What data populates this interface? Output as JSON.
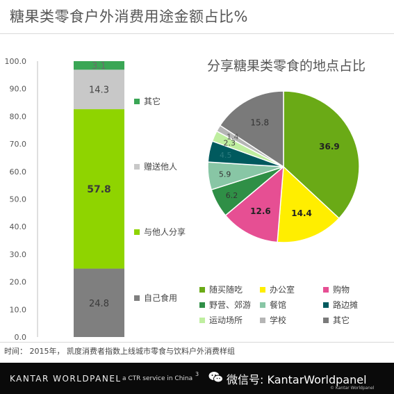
{
  "page_title": "糖果类零食户外消费用途金额占比%",
  "pie_title": "分享糖果类零食的地点占比",
  "footnote": "时间： 2015年， 凯度消费者指数上线城市零食与饮料户外消费样组",
  "footer": {
    "brand": "KANTAR WORLDPANEL",
    "brand_sub": "a CTR service in China",
    "page_number": "3",
    "wechat": "微信号: KantarWorldpanel",
    "copyright": "© Kantar Worldpanel"
  },
  "chart_data": [
    {
      "type": "bar",
      "stacked": true,
      "ylim": [
        0,
        100
      ],
      "yticks": [
        "0.0",
        "10.0",
        "20.0",
        "30.0",
        "40.0",
        "50.0",
        "60.0",
        "70.0",
        "80.0",
        "90.0",
        "100.0"
      ],
      "series": [
        {
          "name": "自己食用",
          "value": 24.8,
          "label": "24.8",
          "color": "#7f7f7f",
          "label_color": "#3a3a3a"
        },
        {
          "name": "与他人分享",
          "value": 57.8,
          "label": "57.8",
          "color": "#8fd400",
          "label_color": "#3a3a3a"
        },
        {
          "name": "赠送他人",
          "value": 14.3,
          "label": "14.3",
          "color": "#c8c8c8",
          "label_color": "#444444"
        },
        {
          "name": "其它",
          "value": 3.1,
          "label": "3.1",
          "color": "#3aa655",
          "label_color": "#6c6c6c"
        }
      ],
      "legend": [
        {
          "label": "其它",
          "color": "#3aa655"
        },
        {
          "label": "赠送他人",
          "color": "#c8c8c8"
        },
        {
          "label": "与他人分享",
          "color": "#8fd400"
        },
        {
          "label": "自己食用",
          "color": "#7f7f7f"
        }
      ]
    },
    {
      "type": "pie",
      "slices": [
        {
          "name": "随买随吃",
          "value": 36.9,
          "label": "36.9",
          "color": "#6aaa16",
          "label_color": "#222222"
        },
        {
          "name": "办公室",
          "value": 14.4,
          "label": "14.4",
          "color": "#ffee00",
          "label_color": "#222222"
        },
        {
          "name": "购物",
          "value": 12.6,
          "label": "12.6",
          "color": "#e64f93",
          "label_color": "#222222"
        },
        {
          "name": "野营、郊游",
          "value": 6.2,
          "label": "6.2",
          "color": "#2f8f46",
          "label_color": "#333333"
        },
        {
          "name": "餐馆",
          "value": 5.9,
          "label": "5.9",
          "color": "#88c6a5",
          "label_color": "#333333"
        },
        {
          "name": "路边摊",
          "value": 4.5,
          "label": "4.5",
          "color": "#005a5e",
          "label_color": "#2a7a7d"
        },
        {
          "name": "运动场所",
          "value": 2.3,
          "label": "2.3",
          "color": "#bfeea0",
          "label_color": "#444444"
        },
        {
          "name": "学校",
          "value": 1.4,
          "label": "1.4",
          "color": "#b5b5b5",
          "label_color": "#555555"
        },
        {
          "name": "其它",
          "value": 15.8,
          "label": "15.8",
          "color": "#7a7a7a",
          "label_color": "#333333"
        }
      ],
      "start_angle_deg": 0,
      "direction": "clockwise",
      "legend_position": "bottom"
    }
  ]
}
